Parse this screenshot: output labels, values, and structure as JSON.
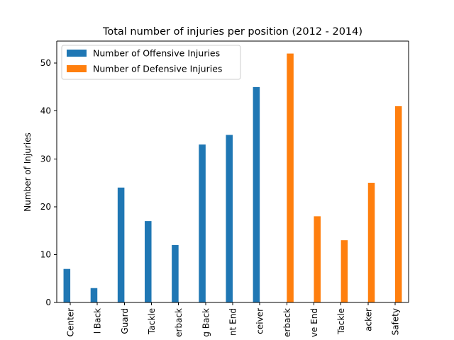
{
  "chart_data": {
    "type": "bar",
    "title": "Total number of injuries per position (2012 - 2014)",
    "xlabel": "",
    "ylabel": "Number of Injuries",
    "ylim": [
      0,
      54.6
    ],
    "yticks": [
      0,
      10,
      20,
      30,
      40,
      50
    ],
    "grid": false,
    "legend_position": "upper-left",
    "categories": [
      "Center",
      "Fullback",
      "Guard",
      "Tackle",
      "Quarterback",
      "Running Back",
      "Tight End",
      "Wide Receiver",
      "Cornerback",
      "Defensive End",
      "Defensive Tackle",
      "Linebacker",
      "Safety"
    ],
    "category_labels_visible": [
      "Center",
      "l Back",
      "Guard",
      "Tackle",
      "erback",
      "g Back",
      "nt End",
      "ceiver",
      "erback",
      "ve End",
      "Tackle",
      "acker",
      "Safety"
    ],
    "series": [
      {
        "name": "Number of Offensive Injuries",
        "color": "#1f77b4",
        "values": [
          7,
          3,
          24,
          17,
          12,
          33,
          35,
          45,
          null,
          null,
          null,
          null,
          null
        ]
      },
      {
        "name": "Number of Defensive Injuries",
        "color": "#ff7f0e",
        "values": [
          null,
          null,
          null,
          null,
          null,
          null,
          null,
          null,
          52,
          18,
          13,
          25,
          41
        ]
      }
    ]
  }
}
